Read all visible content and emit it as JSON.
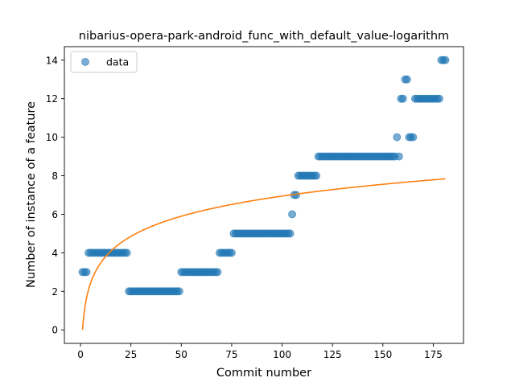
{
  "chart_data": {
    "type": "scatter",
    "title": "nibarius-opera-park-android_func_with_default_value-logarithm",
    "xlabel": "Commit number",
    "ylabel": "Number of instance of a feature",
    "xlim": [
      -8,
      190
    ],
    "ylim": [
      -0.7,
      14.7
    ],
    "xticks": [
      0,
      25,
      50,
      75,
      100,
      125,
      150,
      175
    ],
    "yticks": [
      0,
      2,
      4,
      6,
      8,
      10,
      12,
      14
    ],
    "grid": false,
    "legend": {
      "position": "top-left",
      "entries": [
        "data"
      ]
    },
    "colors": {
      "points": "#1f77b4",
      "fit": "#ff7f0e"
    },
    "series": [
      {
        "name": "data",
        "kind": "scatter",
        "points": [
          [
            1,
            3
          ],
          [
            2,
            3
          ],
          [
            3,
            3
          ],
          [
            4,
            4
          ],
          [
            5,
            4
          ],
          [
            6,
            4
          ],
          [
            7,
            4
          ],
          [
            8,
            4
          ],
          [
            9,
            4
          ],
          [
            10,
            4
          ],
          [
            11,
            4
          ],
          [
            12,
            4
          ],
          [
            13,
            4
          ],
          [
            14,
            4
          ],
          [
            15,
            4
          ],
          [
            16,
            4
          ],
          [
            17,
            4
          ],
          [
            18,
            4
          ],
          [
            19,
            4
          ],
          [
            20,
            4
          ],
          [
            21,
            4
          ],
          [
            22,
            4
          ],
          [
            23,
            4
          ],
          [
            24,
            2
          ],
          [
            25,
            2
          ],
          [
            26,
            2
          ],
          [
            27,
            2
          ],
          [
            28,
            2
          ],
          [
            29,
            2
          ],
          [
            30,
            2
          ],
          [
            31,
            2
          ],
          [
            32,
            2
          ],
          [
            33,
            2
          ],
          [
            34,
            2
          ],
          [
            35,
            2
          ],
          [
            36,
            2
          ],
          [
            37,
            2
          ],
          [
            38,
            2
          ],
          [
            39,
            2
          ],
          [
            40,
            2
          ],
          [
            41,
            2
          ],
          [
            42,
            2
          ],
          [
            43,
            2
          ],
          [
            44,
            2
          ],
          [
            45,
            2
          ],
          [
            46,
            2
          ],
          [
            47,
            2
          ],
          [
            48,
            2
          ],
          [
            49,
            2
          ],
          [
            50,
            3
          ],
          [
            51,
            3
          ],
          [
            52,
            3
          ],
          [
            53,
            3
          ],
          [
            54,
            3
          ],
          [
            55,
            3
          ],
          [
            56,
            3
          ],
          [
            57,
            3
          ],
          [
            58,
            3
          ],
          [
            59,
            3
          ],
          [
            60,
            3
          ],
          [
            61,
            3
          ],
          [
            62,
            3
          ],
          [
            63,
            3
          ],
          [
            64,
            3
          ],
          [
            65,
            3
          ],
          [
            66,
            3
          ],
          [
            67,
            3
          ],
          [
            68,
            3
          ],
          [
            69,
            4
          ],
          [
            70,
            4
          ],
          [
            71,
            4
          ],
          [
            72,
            4
          ],
          [
            73,
            4
          ],
          [
            74,
            4
          ],
          [
            75,
            4
          ],
          [
            76,
            5
          ],
          [
            77,
            5
          ],
          [
            78,
            5
          ],
          [
            79,
            5
          ],
          [
            80,
            5
          ],
          [
            81,
            5
          ],
          [
            82,
            5
          ],
          [
            83,
            5
          ],
          [
            84,
            5
          ],
          [
            85,
            5
          ],
          [
            86,
            5
          ],
          [
            87,
            5
          ],
          [
            88,
            5
          ],
          [
            89,
            5
          ],
          [
            90,
            5
          ],
          [
            91,
            5
          ],
          [
            92,
            5
          ],
          [
            93,
            5
          ],
          [
            94,
            5
          ],
          [
            95,
            5
          ],
          [
            96,
            5
          ],
          [
            97,
            5
          ],
          [
            98,
            5
          ],
          [
            99,
            5
          ],
          [
            100,
            5
          ],
          [
            101,
            5
          ],
          [
            102,
            5
          ],
          [
            103,
            5
          ],
          [
            104,
            5
          ],
          [
            105,
            6
          ],
          [
            106,
            7
          ],
          [
            107,
            7
          ],
          [
            108,
            8
          ],
          [
            109,
            8
          ],
          [
            110,
            8
          ],
          [
            111,
            8
          ],
          [
            112,
            8
          ],
          [
            113,
            8
          ],
          [
            114,
            8
          ],
          [
            115,
            8
          ],
          [
            116,
            8
          ],
          [
            117,
            8
          ],
          [
            118,
            9
          ],
          [
            119,
            9
          ],
          [
            120,
            9
          ],
          [
            121,
            9
          ],
          [
            122,
            9
          ],
          [
            123,
            9
          ],
          [
            124,
            9
          ],
          [
            125,
            9
          ],
          [
            126,
            9
          ],
          [
            127,
            9
          ],
          [
            128,
            9
          ],
          [
            129,
            9
          ],
          [
            130,
            9
          ],
          [
            131,
            9
          ],
          [
            132,
            9
          ],
          [
            133,
            9
          ],
          [
            134,
            9
          ],
          [
            135,
            9
          ],
          [
            136,
            9
          ],
          [
            137,
            9
          ],
          [
            138,
            9
          ],
          [
            139,
            9
          ],
          [
            140,
            9
          ],
          [
            141,
            9
          ],
          [
            142,
            9
          ],
          [
            143,
            9
          ],
          [
            144,
            9
          ],
          [
            145,
            9
          ],
          [
            146,
            9
          ],
          [
            147,
            9
          ],
          [
            148,
            9
          ],
          [
            149,
            9
          ],
          [
            150,
            9
          ],
          [
            151,
            9
          ],
          [
            152,
            9
          ],
          [
            153,
            9
          ],
          [
            154,
            9
          ],
          [
            155,
            9
          ],
          [
            156,
            9
          ],
          [
            157,
            10
          ],
          [
            158,
            9
          ],
          [
            159,
            12
          ],
          [
            160,
            12
          ],
          [
            161,
            13
          ],
          [
            162,
            13
          ],
          [
            163,
            10
          ],
          [
            164,
            10
          ],
          [
            165,
            10
          ],
          [
            166,
            12
          ],
          [
            167,
            12
          ],
          [
            168,
            12
          ],
          [
            169,
            12
          ],
          [
            170,
            12
          ],
          [
            171,
            12
          ],
          [
            172,
            12
          ],
          [
            173,
            12
          ],
          [
            174,
            12
          ],
          [
            175,
            12
          ],
          [
            176,
            12
          ],
          [
            177,
            12
          ],
          [
            178,
            12
          ],
          [
            179,
            14
          ],
          [
            180,
            14
          ],
          [
            181,
            14
          ]
        ]
      },
      {
        "name": "",
        "kind": "line",
        "model": "y = a*ln(x)",
        "a": 1.508,
        "x_range": [
          1,
          181
        ]
      }
    ]
  }
}
